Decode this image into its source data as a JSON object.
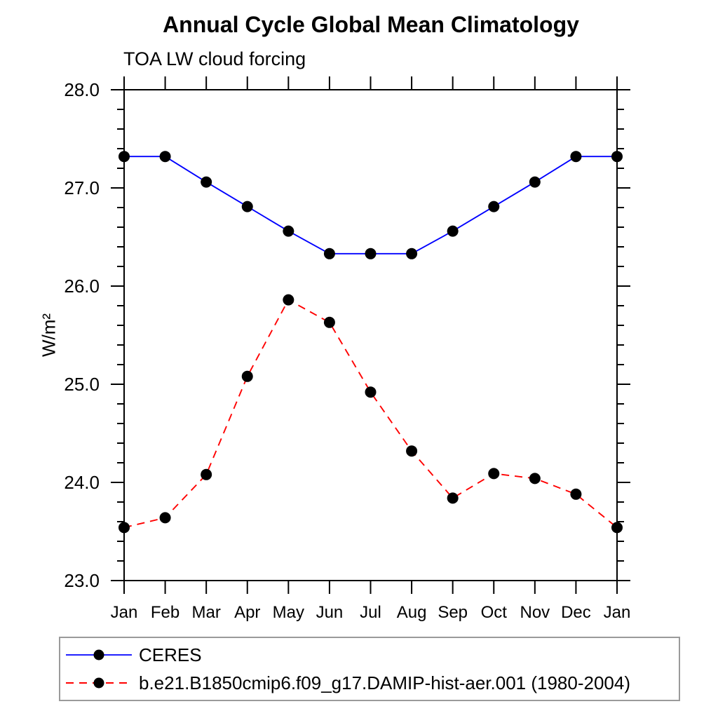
{
  "title": "Annual Cycle Global Mean Climatology",
  "subtitle": "TOA LW cloud forcing",
  "ylabel_display": "W/m²",
  "chart_data": {
    "type": "line",
    "title": "Annual Cycle Global Mean Climatology",
    "subtitle": "TOA LW cloud forcing",
    "xlabel": "",
    "ylabel": "W/m^2",
    "categories": [
      "Jan",
      "Feb",
      "Mar",
      "Apr",
      "May",
      "Jun",
      "Jul",
      "Aug",
      "Sep",
      "Oct",
      "Nov",
      "Dec",
      "Jan"
    ],
    "ylim": [
      23.0,
      28.0
    ],
    "ytick_major": [
      23.0,
      24.0,
      25.0,
      26.0,
      27.0,
      28.0
    ],
    "ytick_labels": [
      "23.0",
      "24.0",
      "25.0",
      "26.0",
      "27.0",
      "28.0"
    ],
    "ytick_minor_step": 0.2,
    "grid": false,
    "legend_position": "bottom-left-boxed",
    "series": [
      {
        "name": "CERES",
        "color": "#0000ff",
        "line_style": "solid",
        "marker": "filled-circle",
        "marker_color": "#000000",
        "values": [
          27.32,
          27.32,
          27.06,
          26.81,
          26.56,
          26.33,
          26.33,
          26.33,
          26.56,
          26.81,
          27.06,
          27.32,
          27.32
        ]
      },
      {
        "name": "b.e21.B1850cmip6.f09_g17.DAMIP-hist-aer.001 (1980-2004)",
        "color": "#ff0000",
        "line_style": "dashed",
        "marker": "filled-circle",
        "marker_color": "#000000",
        "values": [
          23.54,
          23.64,
          24.08,
          25.08,
          25.86,
          25.63,
          24.92,
          24.32,
          23.84,
          24.09,
          24.04,
          23.88,
          23.54
        ]
      }
    ]
  }
}
